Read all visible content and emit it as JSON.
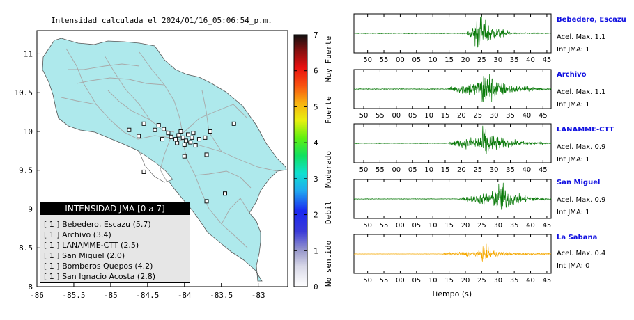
{
  "map": {
    "title": "Intensidad calculada el 2024/01/16_05:06:54_p.m.",
    "xticks": [
      "-86",
      "-85.5",
      "-85",
      "-84.5",
      "-84",
      "-83.5",
      "-83"
    ],
    "yticks": [
      "11",
      "10.5",
      "10",
      "9.5",
      "9",
      "8.5",
      "8"
    ],
    "colors": {
      "land": "#aee9ec",
      "sea": "#ffffff",
      "roads": "#aaaaaa"
    }
  },
  "colorbar": {
    "ticks": [
      "0",
      "1",
      "2",
      "3",
      "4",
      "5",
      "6",
      "7"
    ],
    "labels": [
      "No sentido",
      "Debil",
      "Moderado",
      "Fuerte",
      "Muy Fuerte"
    ]
  },
  "legend": {
    "title": "INTENSIDAD JMA [0 a 7]",
    "items": [
      "[ 1 ]  Bebedero, Escazu (5.7)",
      "[ 1 ]  Archivo (3.4)",
      "[ 1 ]  LANAMME-CTT (2.5)",
      "[ 1 ]  San Miguel (2.0)",
      "[ 1 ]  Bomberos Quepos (4.2)",
      "[ 1 ]  San Ignacio Acosta (2.8)"
    ]
  },
  "traces": {
    "xlabel": "Tiempo (s)",
    "stations": [
      {
        "name": "Bebedero, Escazu",
        "acel": "Acel. Max. 1.1",
        "jma": "Int JMA: 1",
        "color": "#0a7a0a",
        "ticks": [
          "50",
          "55",
          "00",
          "05",
          "10",
          "15",
          "20",
          "25",
          "30",
          "35",
          "40",
          "45"
        ]
      },
      {
        "name": "Archivo",
        "acel": "Acel. Max. 1.1",
        "jma": "Int JMA: 1",
        "color": "#0a7a0a",
        "ticks": [
          "50",
          "55",
          "00",
          "05",
          "10",
          "15",
          "20",
          "25",
          "30",
          "35",
          "40",
          "45"
        ]
      },
      {
        "name": "LANAMME-CTT",
        "acel": "Acel. Max. 0.9",
        "jma": "Int JMA: 1",
        "color": "#0a7a0a",
        "ticks": [
          "50",
          "55",
          "00",
          "05",
          "10",
          "15",
          "20",
          "25",
          "30",
          "35",
          "40",
          "45"
        ]
      },
      {
        "name": "San Miguel",
        "acel": "Acel. Max. 0.9",
        "jma": "Int JMA: 1",
        "color": "#0a7a0a",
        "ticks": [
          "50",
          "55",
          "00",
          "05",
          "10",
          "15",
          "20",
          "25",
          "30",
          "35",
          "40",
          "45"
        ]
      },
      {
        "name": "La Sabana",
        "acel": "Acel. Max. 0.4",
        "jma": "Int JMA: 0",
        "color": "#f5a800",
        "ticks": [
          "50",
          "55",
          "00",
          "05",
          "10",
          "15",
          "20",
          "25",
          "30",
          "35",
          "40",
          "45"
        ]
      }
    ]
  },
  "chart_data": [
    {
      "type": "scatter",
      "title": "Intensidad calculada el 2024/01/16_05:06:54_p.m.",
      "xlim": [
        -86,
        -82.6
      ],
      "ylim": [
        8,
        11.3
      ],
      "xticks": [
        -86,
        -85.5,
        -85,
        -84.5,
        -84,
        -83.5,
        -83
      ],
      "yticks": [
        8,
        8.5,
        9,
        9.5,
        10,
        10.5,
        11
      ],
      "grid": false,
      "legend_position": "bottom-left",
      "station_points": [
        [
          -84.75,
          10.02
        ],
        [
          -84.62,
          9.94
        ],
        [
          -84.35,
          10.08
        ],
        [
          -84.28,
          10.03
        ],
        [
          -84.22,
          9.98
        ],
        [
          -84.18,
          9.93
        ],
        [
          -84.12,
          9.9
        ],
        [
          -84.08,
          9.95
        ],
        [
          -84.05,
          10.0
        ],
        [
          -84.02,
          9.92
        ],
        [
          -83.98,
          9.88
        ],
        [
          -83.95,
          9.96
        ],
        [
          -83.92,
          9.86
        ],
        [
          -83.9,
          9.92
        ],
        [
          -83.85,
          9.82
        ],
        [
          -83.8,
          9.9
        ],
        [
          -84.1,
          9.85
        ],
        [
          -84.0,
          9.83
        ],
        [
          -83.88,
          9.98
        ],
        [
          -84.3,
          9.9
        ],
        [
          -83.72,
          9.92
        ],
        [
          -84.0,
          9.68
        ],
        [
          -83.7,
          9.7
        ],
        [
          -83.33,
          10.1
        ],
        [
          -84.55,
          9.48
        ],
        [
          -83.45,
          9.2
        ],
        [
          -83.7,
          9.1
        ],
        [
          -84.55,
          10.1
        ],
        [
          -84.4,
          10.02
        ],
        [
          -83.65,
          10.0
        ]
      ]
    },
    {
      "type": "line",
      "title": "",
      "xlabel": "Tiempo (s)",
      "ylabel": "",
      "series": [
        {
          "name": "Bebedero, Escazu",
          "acel_max": 1.1,
          "int_jma": 1,
          "onset_s": 20.5,
          "peak_s": 24.0,
          "end_s": 34.0
        },
        {
          "name": "Archivo",
          "acel_max": 1.1,
          "int_jma": 1,
          "onset_s": 16.0,
          "peak_s": 27.5,
          "end_s": 45.0
        },
        {
          "name": "LANAMME-CTT",
          "acel_max": 0.9,
          "int_jma": 1,
          "onset_s": 16.0,
          "peak_s": 27.0,
          "end_s": 45.0
        },
        {
          "name": "San Miguel",
          "acel_max": 0.9,
          "int_jma": 1,
          "onset_s": 18.0,
          "peak_s": 30.5,
          "end_s": 45.0
        },
        {
          "name": "La Sabana",
          "acel_max": 0.4,
          "int_jma": 0,
          "onset_s": 13.0,
          "peak_s": 26.0,
          "end_s": 45.0
        }
      ]
    }
  ]
}
